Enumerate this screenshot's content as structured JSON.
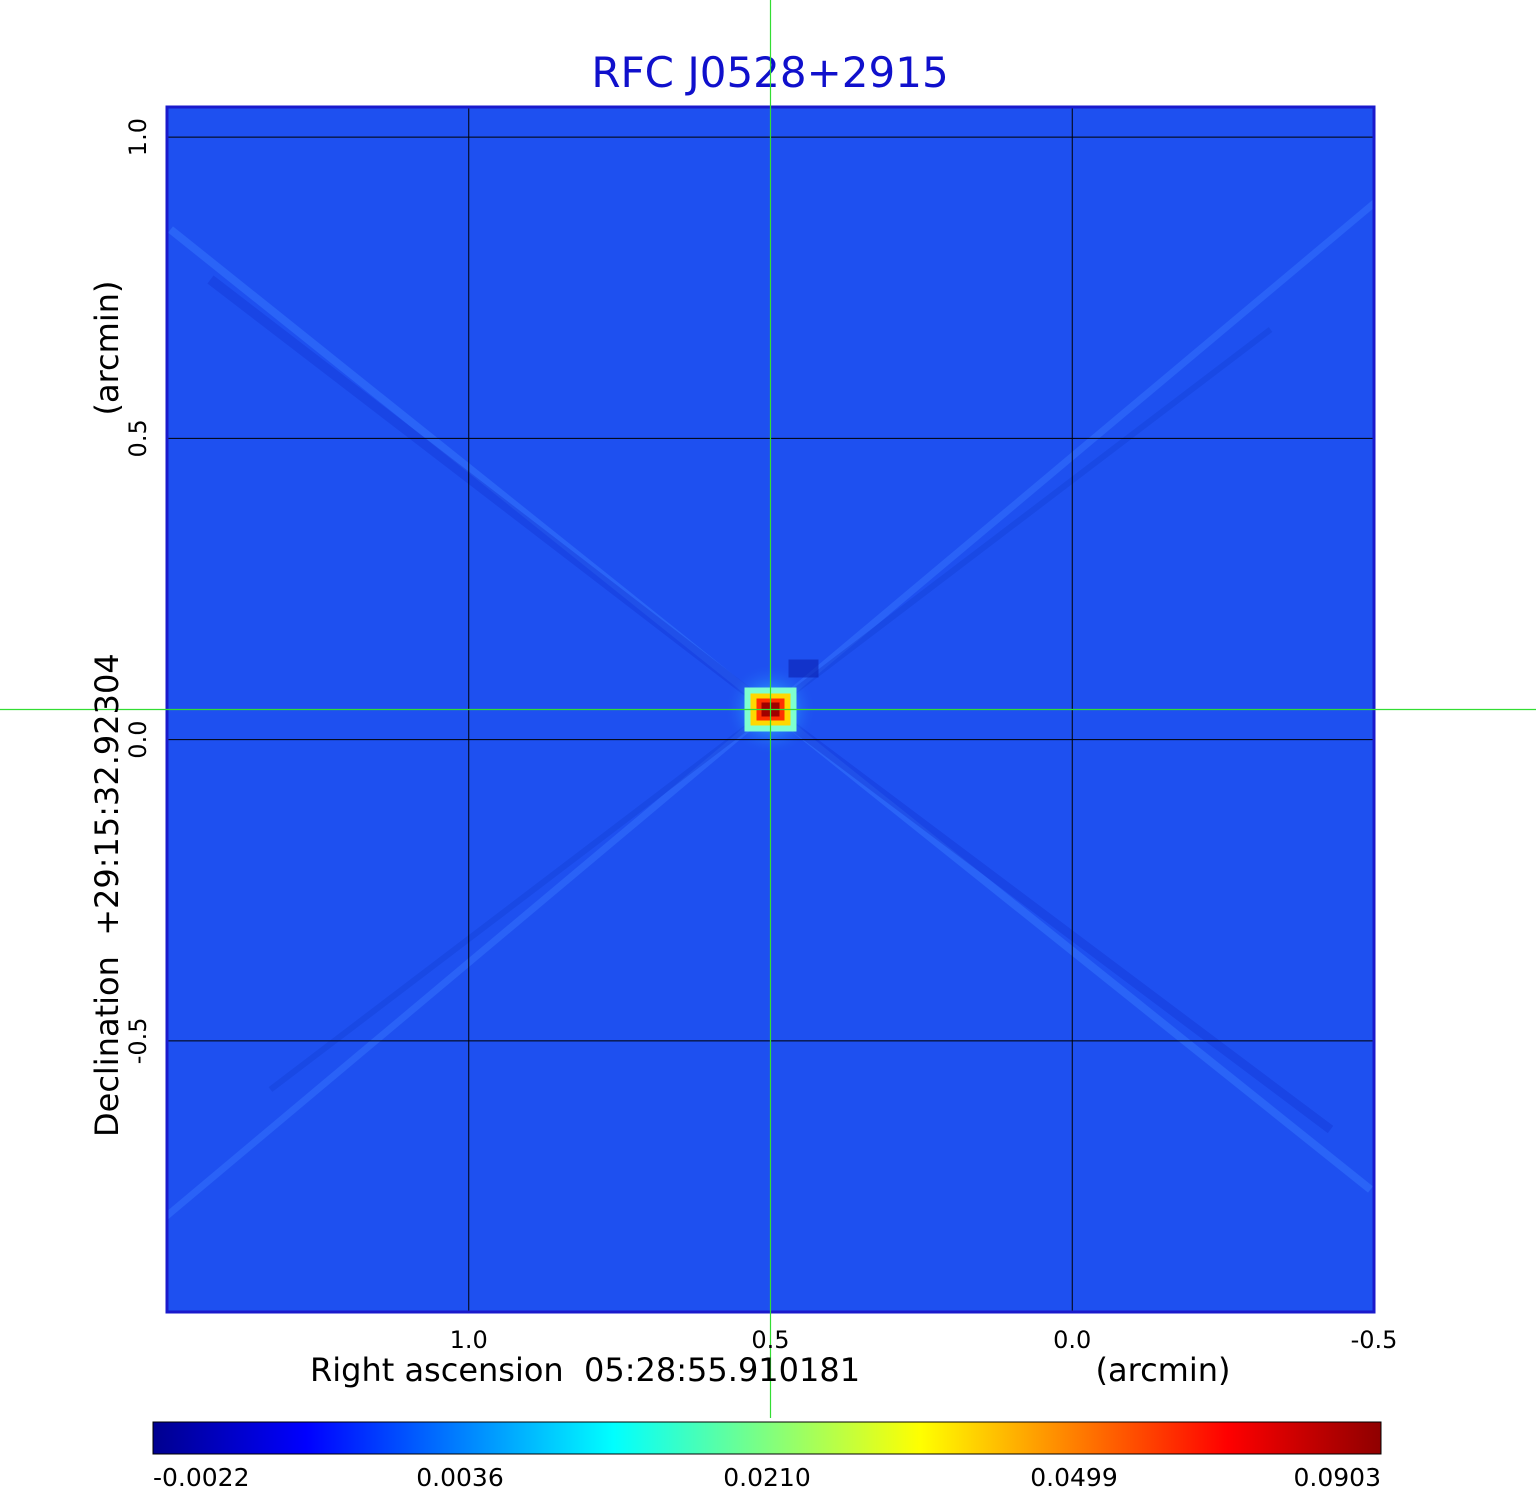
{
  "chart_data": {
    "type": "heatmap",
    "title": "RFC J0528+2915",
    "xlabel": "Right ascension  05:28:55.910181",
    "xunit": "(arcmin)",
    "ylabel": "Declination  +29:15:32.92304",
    "yunit": "(arcmin)",
    "x_ticks": [
      "1.0",
      "0.5",
      "0.0",
      "-0.5"
    ],
    "y_ticks": [
      "1.0",
      "0.5",
      "0.0",
      "-0.5"
    ],
    "xlim": [
      1.5,
      -0.5
    ],
    "ylim": [
      -0.95,
      1.05
    ],
    "grid": true,
    "crosshair": {
      "x": 0.5,
      "y": 0.05
    },
    "peak": {
      "x": 0.5,
      "y": 0.05,
      "value": 0.0903
    },
    "colorbar": {
      "colormap": "jet",
      "ticks": [
        "-0.0022",
        "0.0036",
        "0.0210",
        "0.0499",
        "0.0903"
      ],
      "range": [
        -0.0022,
        0.0903
      ]
    },
    "colors": {
      "background": "#1e50f0",
      "grid": "#000000",
      "crosshair": "#33dd33",
      "frame": "#1a1acc",
      "title": "#1010cc"
    }
  }
}
